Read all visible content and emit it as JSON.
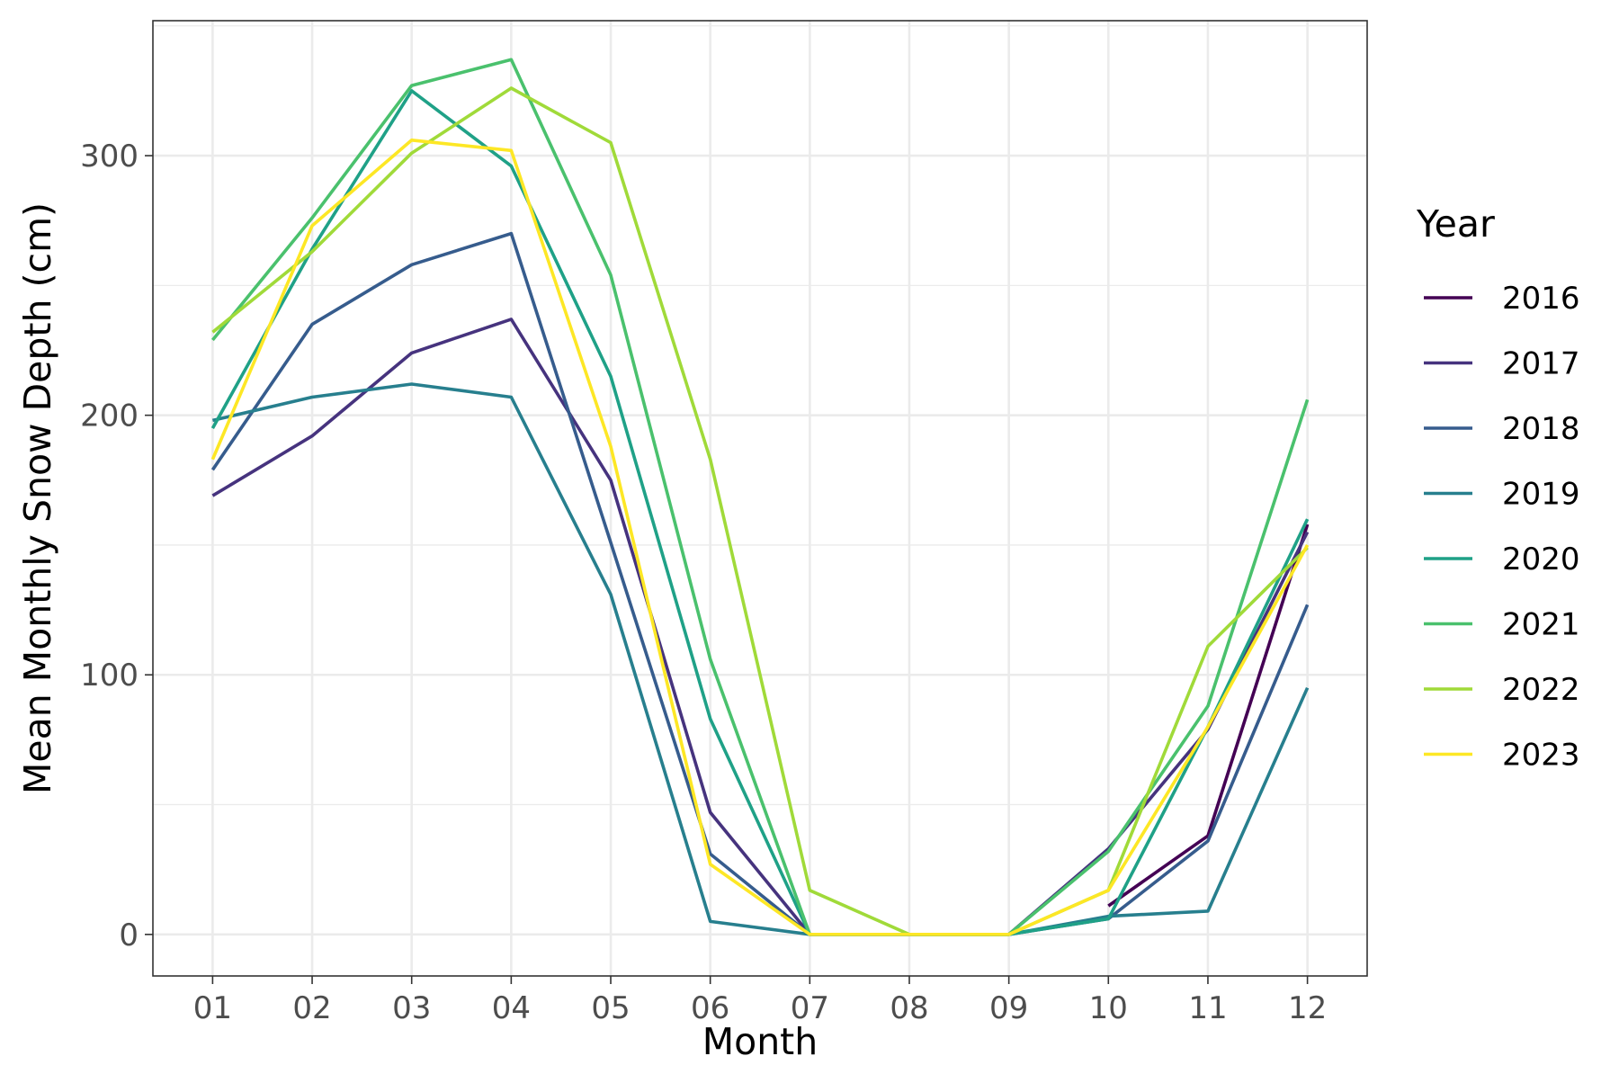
{
  "chart_data": {
    "type": "line",
    "title": "",
    "xlabel": "Month",
    "ylabel": "Mean Monthly Snow Depth (cm)",
    "categories": [
      "01",
      "02",
      "03",
      "04",
      "05",
      "06",
      "07",
      "08",
      "09",
      "10",
      "11",
      "12"
    ],
    "ylim": [
      -16,
      352
    ],
    "yticks": [
      0,
      100,
      200,
      300
    ],
    "grid": true,
    "legend": {
      "title": "Year",
      "placement": "right"
    },
    "series": [
      {
        "name": "2016",
        "color": "#440154",
        "values": [
          null,
          null,
          null,
          null,
          null,
          null,
          null,
          null,
          null,
          11,
          38,
          158
        ]
      },
      {
        "name": "2017",
        "color": "#46337e",
        "values": [
          169,
          192,
          224,
          237,
          175,
          47,
          0,
          0,
          0,
          33,
          79,
          155
        ]
      },
      {
        "name": "2018",
        "color": "#365c8d",
        "values": [
          179,
          235,
          258,
          270,
          151,
          31,
          0,
          0,
          0,
          6,
          36,
          127
        ]
      },
      {
        "name": "2019",
        "color": "#277f8e",
        "values": [
          198,
          207,
          212,
          207,
          131,
          5,
          0,
          0,
          0,
          7,
          9,
          95
        ]
      },
      {
        "name": "2020",
        "color": "#1fa187",
        "values": [
          195,
          264,
          325,
          296,
          215,
          83,
          0,
          0,
          0,
          6,
          80,
          160
        ]
      },
      {
        "name": "2021",
        "color": "#4ac16d",
        "values": [
          229,
          276,
          327,
          337,
          254,
          106,
          0,
          0,
          0,
          32,
          88,
          206
        ]
      },
      {
        "name": "2022",
        "color": "#a0da39",
        "values": [
          232,
          263,
          301,
          326,
          305,
          183,
          17,
          0,
          0,
          17,
          111,
          149
        ]
      },
      {
        "name": "2023",
        "color": "#fde725",
        "values": [
          183,
          273,
          306,
          302,
          188,
          27,
          0,
          0,
          0,
          17,
          80,
          150
        ]
      }
    ]
  }
}
